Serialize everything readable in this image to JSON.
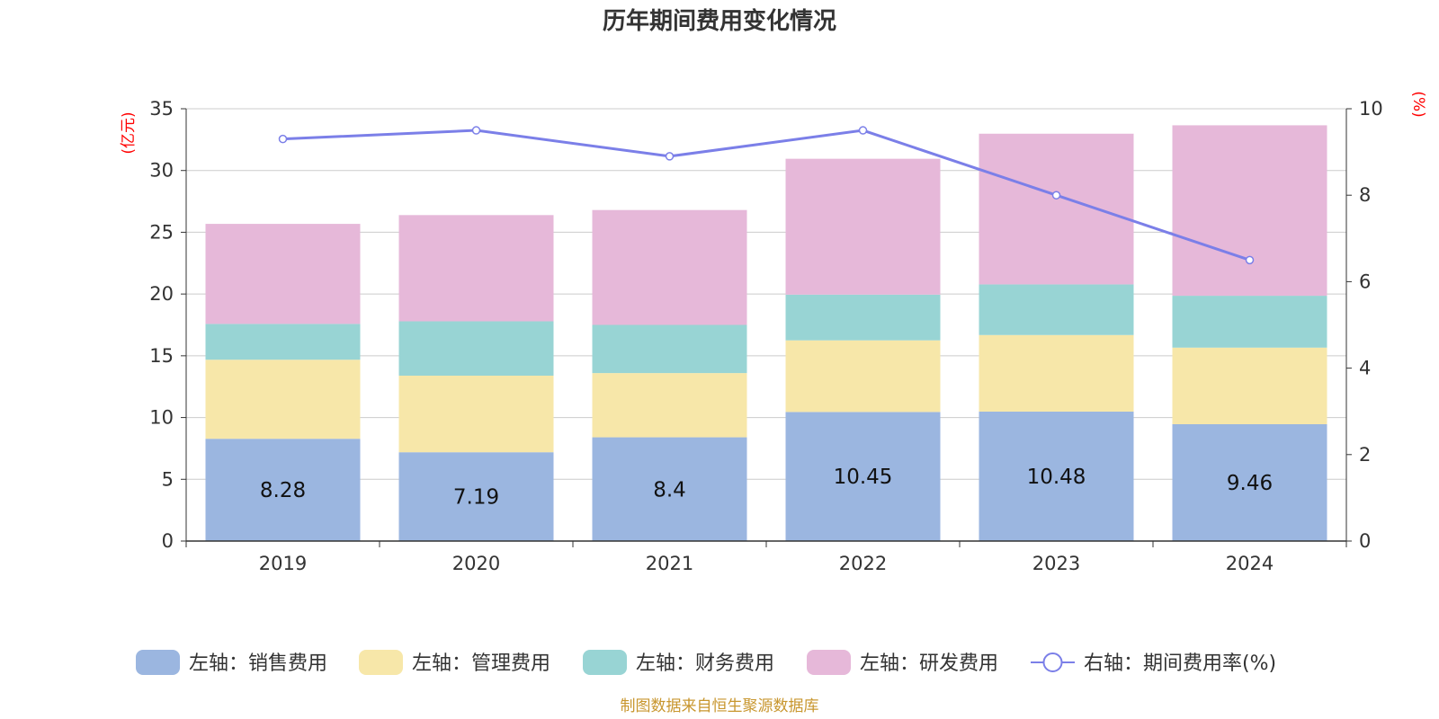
{
  "chart_data": {
    "type": "bar",
    "title": "历年期间费用变化情况",
    "categories": [
      "2019",
      "2020",
      "2021",
      "2022",
      "2023",
      "2024"
    ],
    "left_axis": {
      "unit": "(亿元)",
      "ylim": [
        0,
        35
      ],
      "ticks": [
        "0",
        "5",
        "10",
        "15",
        "20",
        "25",
        "30",
        "35"
      ]
    },
    "right_axis": {
      "unit": "(%)",
      "ylim": [
        0,
        10
      ],
      "ticks": [
        "0",
        "2",
        "4",
        "6",
        "8",
        "10"
      ]
    },
    "stacked": true,
    "grid": true,
    "legend_position": "bottom",
    "series": [
      {
        "name": "左轴：销售费用",
        "type": "bar",
        "axis": "left",
        "color": "#9bb6e0",
        "values": [
          8.28,
          7.19,
          8.4,
          10.45,
          10.48,
          9.46
        ],
        "labels": [
          "8.28",
          "7.19",
          "8.4",
          "10.45",
          "10.48",
          "9.46"
        ]
      },
      {
        "name": "左轴：管理费用",
        "type": "bar",
        "axis": "left",
        "color": "#f7e7a9",
        "values": [
          6.4,
          6.2,
          5.2,
          5.8,
          6.2,
          6.2
        ]
      },
      {
        "name": "左轴：财务费用",
        "type": "bar",
        "axis": "left",
        "color": "#98d4d4",
        "values": [
          2.9,
          4.4,
          3.9,
          3.7,
          4.1,
          4.2
        ]
      },
      {
        "name": "左轴：研发费用",
        "type": "bar",
        "axis": "left",
        "color": "#e6b8d9",
        "values": [
          8.1,
          8.6,
          9.3,
          11.0,
          12.2,
          13.8
        ]
      },
      {
        "name": "右轴：期间费用率(%)",
        "type": "line",
        "axis": "right",
        "color": "#7b7fe8",
        "values": [
          9.3,
          9.5,
          8.9,
          9.5,
          8.0,
          6.5
        ]
      }
    ],
    "source": "制图数据来自恒生聚源数据库"
  }
}
